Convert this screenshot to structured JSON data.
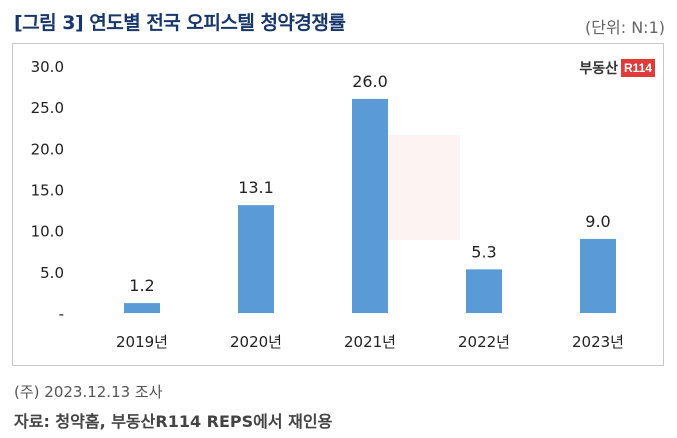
{
  "header": {
    "title": "[그림 3] 연도별 전국 오피스텔 청약경쟁률",
    "unit": "(단위: N:1)"
  },
  "brand": {
    "text": "부동산",
    "mark": "R114"
  },
  "chart_data": {
    "type": "bar",
    "categories": [
      "2019년",
      "2020년",
      "2021년",
      "2022년",
      "2023년"
    ],
    "values": [
      1.2,
      13.1,
      26.0,
      5.3,
      9.0
    ],
    "value_labels": [
      "1.2",
      "13.1",
      "26.0",
      "5.3",
      "9.0"
    ],
    "y_ticks": [
      0,
      5,
      10,
      15,
      20,
      25,
      30
    ],
    "y_tick_labels": [
      "-",
      "5.0",
      "10.0",
      "15.0",
      "20.0",
      "25.0",
      "30.0"
    ],
    "ylim": [
      0,
      30
    ],
    "grid": false,
    "bar_color": "#5b9bd5"
  },
  "footer": {
    "note": "(주) 2023.12.13 조사",
    "source": "자료: 청약홈, 부동산R114 REPS에서 재인용"
  }
}
